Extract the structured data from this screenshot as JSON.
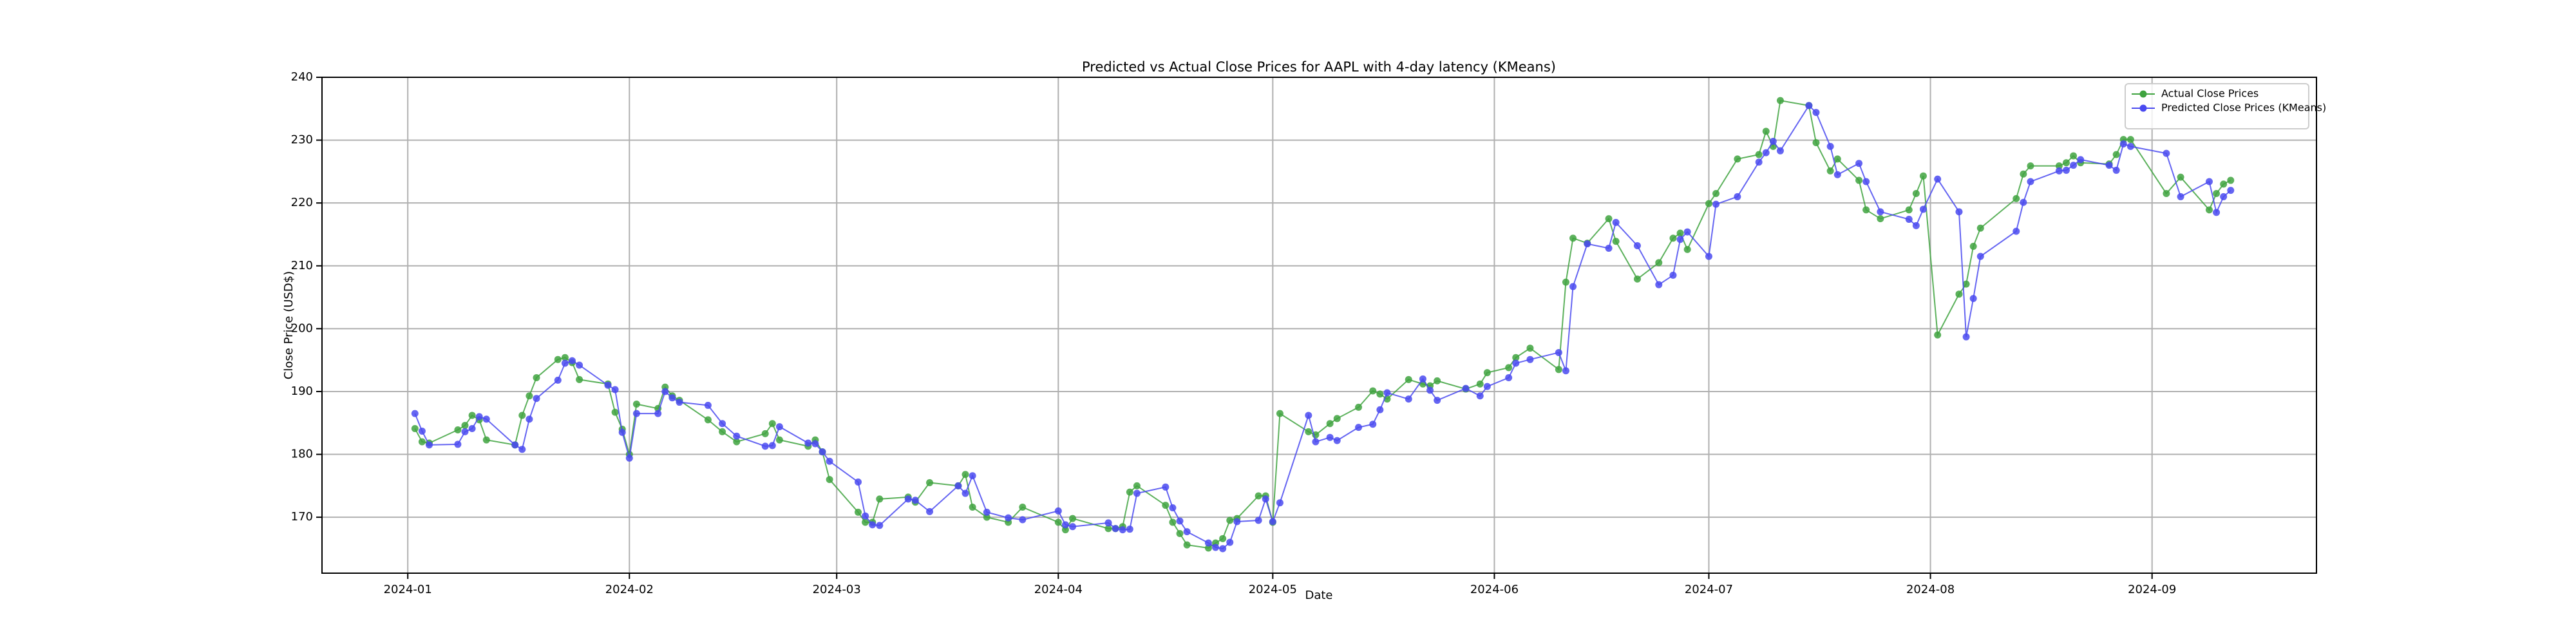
{
  "chart_data": {
    "type": "line",
    "title": "Predicted vs Actual Close Prices for AAPL with 4-day latency (KMeans)",
    "xlabel": "Date",
    "ylabel": "Close Price (USD$)",
    "x": [
      "2024-01-02",
      "2024-01-03",
      "2024-01-04",
      "2024-01-08",
      "2024-01-09",
      "2024-01-10",
      "2024-01-11",
      "2024-01-12",
      "2024-01-16",
      "2024-01-17",
      "2024-01-18",
      "2024-01-19",
      "2024-01-22",
      "2024-01-23",
      "2024-01-24",
      "2024-01-25",
      "2024-01-29",
      "2024-01-30",
      "2024-01-31",
      "2024-02-01",
      "2024-02-02",
      "2024-02-05",
      "2024-02-06",
      "2024-02-07",
      "2024-02-08",
      "2024-02-12",
      "2024-02-14",
      "2024-02-16",
      "2024-02-20",
      "2024-02-21",
      "2024-02-22",
      "2024-02-26",
      "2024-02-27",
      "2024-02-28",
      "2024-02-29",
      "2024-03-04",
      "2024-03-05",
      "2024-03-06",
      "2024-03-07",
      "2024-03-11",
      "2024-03-12",
      "2024-03-14",
      "2024-03-18",
      "2024-03-19",
      "2024-03-20",
      "2024-03-22",
      "2024-03-25",
      "2024-03-27",
      "2024-04-01",
      "2024-04-02",
      "2024-04-03",
      "2024-04-08",
      "2024-04-09",
      "2024-04-10",
      "2024-04-11",
      "2024-04-12",
      "2024-04-16",
      "2024-04-17",
      "2024-04-18",
      "2024-04-19",
      "2024-04-22",
      "2024-04-23",
      "2024-04-24",
      "2024-04-25",
      "2024-04-26",
      "2024-04-29",
      "2024-04-30",
      "2024-05-01",
      "2024-05-02",
      "2024-05-06",
      "2024-05-07",
      "2024-05-09",
      "2024-05-10",
      "2024-05-13",
      "2024-05-15",
      "2024-05-16",
      "2024-05-17",
      "2024-05-20",
      "2024-05-22",
      "2024-05-23",
      "2024-05-24",
      "2024-05-28",
      "2024-05-30",
      "2024-05-31",
      "2024-06-03",
      "2024-06-04",
      "2024-06-06",
      "2024-06-10",
      "2024-06-11",
      "2024-06-12",
      "2024-06-14",
      "2024-06-17",
      "2024-06-18",
      "2024-06-21",
      "2024-06-24",
      "2024-06-26",
      "2024-06-27",
      "2024-06-28",
      "2024-07-01",
      "2024-07-02",
      "2024-07-05",
      "2024-07-08",
      "2024-07-09",
      "2024-07-10",
      "2024-07-11",
      "2024-07-15",
      "2024-07-16",
      "2024-07-18",
      "2024-07-19",
      "2024-07-22",
      "2024-07-23",
      "2024-07-25",
      "2024-07-29",
      "2024-07-30",
      "2024-07-31",
      "2024-08-02",
      "2024-08-05",
      "2024-08-06",
      "2024-08-07",
      "2024-08-08",
      "2024-08-13",
      "2024-08-14",
      "2024-08-15",
      "2024-08-19",
      "2024-08-20",
      "2024-08-21",
      "2024-08-22",
      "2024-08-26",
      "2024-08-27",
      "2024-08-28",
      "2024-08-29",
      "2024-09-03",
      "2024-09-05",
      "2024-09-09",
      "2024-09-10",
      "2024-09-11",
      "2024-09-12"
    ],
    "series": [
      {
        "name": "Actual Close Prices",
        "color": "#3fa33f",
        "values": [
          184.1,
          182.0,
          181.8,
          183.9,
          184.6,
          186.2,
          185.5,
          182.3,
          181.5,
          186.2,
          189.3,
          192.2,
          195.1,
          195.4,
          194.6,
          191.9,
          191.2,
          186.7,
          184.0,
          180.0,
          188.0,
          187.3,
          190.7,
          189.3,
          188.6,
          185.5,
          183.6,
          182.0,
          183.3,
          184.9,
          182.3,
          181.3,
          182.3,
          180.4,
          176.0,
          170.8,
          169.2,
          169.2,
          172.9,
          173.2,
          172.4,
          175.5,
          175.0,
          176.8,
          171.6,
          170.0,
          169.2,
          171.6,
          169.2,
          168.0,
          169.8,
          168.2,
          168.2,
          168.5,
          174.0,
          175.0,
          171.9,
          169.2,
          167.4,
          165.6,
          165.1,
          165.9,
          166.6,
          169.5,
          169.8,
          173.4,
          173.4,
          169.2,
          186.5,
          183.6,
          183.1,
          184.9,
          185.7,
          187.5,
          190.1,
          189.6,
          188.8,
          191.9,
          191.2,
          190.9,
          191.7,
          190.4,
          191.2,
          193.0,
          193.8,
          195.4,
          196.9,
          193.5,
          207.4,
          214.4,
          213.6,
          217.5,
          213.9,
          207.9,
          210.5,
          214.4,
          215.2,
          212.6,
          219.9,
          221.5,
          227.0,
          227.7,
          231.4,
          229.0,
          236.3,
          235.5,
          229.6,
          225.1,
          227.0,
          223.6,
          218.9,
          217.5,
          218.9,
          221.5,
          224.3,
          199.0,
          205.5,
          207.1,
          213.1,
          216.0,
          220.7,
          224.6,
          225.9,
          225.9,
          226.4,
          227.5,
          226.4,
          226.2,
          227.7,
          230.1,
          230.1,
          221.5,
          224.1,
          218.9,
          221.5,
          223.0,
          223.6
        ]
      },
      {
        "name": "Predicted Close Prices (KMeans)",
        "color": "#4a4af0",
        "values": [
          186.5,
          183.7,
          181.5,
          181.6,
          183.6,
          184.1,
          186.0,
          185.6,
          181.5,
          180.8,
          185.6,
          188.9,
          191.8,
          194.5,
          194.9,
          194.2,
          191.0,
          190.3,
          183.5,
          179.4,
          186.5,
          186.5,
          190.0,
          189.0,
          188.3,
          187.8,
          184.9,
          182.9,
          181.3,
          181.4,
          184.4,
          181.8,
          181.7,
          180.4,
          178.9,
          175.6,
          170.2,
          168.8,
          168.7,
          172.9,
          172.7,
          170.9,
          175.0,
          173.8,
          176.6,
          170.8,
          169.9,
          169.6,
          171.0,
          168.8,
          168.5,
          169.1,
          168.2,
          168.0,
          168.1,
          173.8,
          174.8,
          171.5,
          169.4,
          167.7,
          165.9,
          165.2,
          165.0,
          166.0,
          169.3,
          169.5,
          172.9,
          169.3,
          172.3,
          186.2,
          182.0,
          182.7,
          182.2,
          184.3,
          184.8,
          187.1,
          189.8,
          188.8,
          192.0,
          190.2,
          188.6,
          190.5,
          189.3,
          190.8,
          192.2,
          194.5,
          195.1,
          196.2,
          193.3,
          206.7,
          213.5,
          212.8,
          216.9,
          213.2,
          207.0,
          208.5,
          214.2,
          215.4,
          211.5,
          219.8,
          221.0,
          226.5,
          228.0,
          229.8,
          228.3,
          235.5,
          234.4,
          229.0,
          224.5,
          226.3,
          223.4,
          218.6,
          217.4,
          216.4,
          219.0,
          223.8,
          218.6,
          198.7,
          204.8,
          211.5,
          215.5,
          220.1,
          223.4,
          225.1,
          225.2,
          226.0,
          226.9,
          226.0,
          225.2,
          229.4,
          229.0,
          227.9,
          221.0,
          223.4,
          218.5,
          221.0,
          222.0
        ]
      }
    ],
    "xlim": [
      "2023-12-20",
      "2024-09-24"
    ],
    "xticks": [
      {
        "value": "2024-01-01",
        "label": "2024-01"
      },
      {
        "value": "2024-02-01",
        "label": "2024-02"
      },
      {
        "value": "2024-03-01",
        "label": "2024-03"
      },
      {
        "value": "2024-04-01",
        "label": "2024-04"
      },
      {
        "value": "2024-05-01",
        "label": "2024-05"
      },
      {
        "value": "2024-06-01",
        "label": "2024-06"
      },
      {
        "value": "2024-07-01",
        "label": "2024-07"
      },
      {
        "value": "2024-08-01",
        "label": "2024-08"
      },
      {
        "value": "2024-09-01",
        "label": "2024-09"
      }
    ],
    "ylim": [
      161.1,
      240
    ],
    "yticks": [
      170,
      180,
      190,
      200,
      210,
      220,
      230,
      240
    ],
    "grid": true,
    "legend": "upper right"
  }
}
